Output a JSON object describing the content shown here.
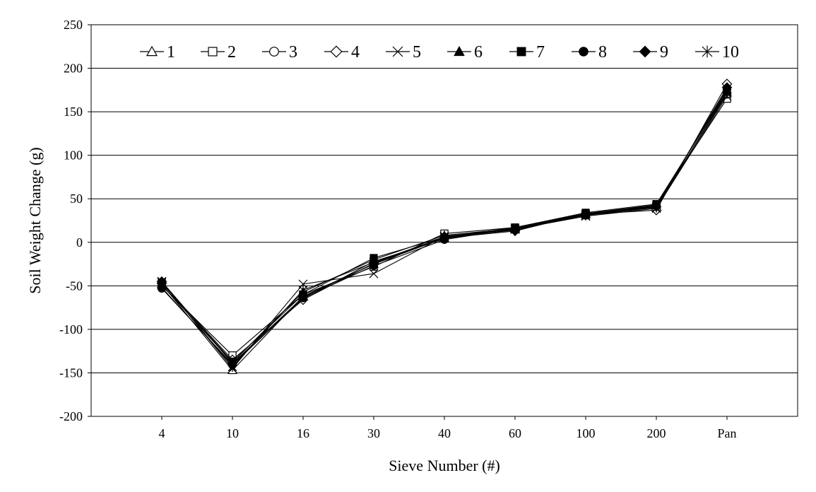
{
  "chart_data": {
    "type": "line",
    "xlabel": "Sieve Number (#)",
    "ylabel": "Soil Weight Change (g)",
    "categories": [
      "4",
      "10",
      "16",
      "30",
      "40",
      "60",
      "100",
      "200",
      "Pan"
    ],
    "ylim": [
      -200,
      250
    ],
    "yticks": [
      -200,
      -150,
      -100,
      -50,
      0,
      50,
      100,
      150,
      200,
      250
    ],
    "grid": "horizontal",
    "legend_position": "top",
    "series": [
      {
        "name": "1",
        "marker": "triangle-open",
        "values": [
          -48,
          -147,
          -62,
          -25,
          5,
          15,
          32,
          40,
          172
        ]
      },
      {
        "name": "2",
        "marker": "square-open",
        "values": [
          -50,
          -130,
          -60,
          -28,
          10,
          17,
          33,
          42,
          165
        ]
      },
      {
        "name": "3",
        "marker": "circle-open",
        "values": [
          -53,
          -140,
          -65,
          -22,
          4,
          16,
          31,
          41,
          170
        ]
      },
      {
        "name": "4",
        "marker": "diamond-open",
        "values": [
          -47,
          -135,
          -66,
          -24,
          6,
          14,
          32,
          37,
          182
        ]
      },
      {
        "name": "5",
        "marker": "x",
        "values": [
          -45,
          -145,
          -48,
          -36,
          7,
          15,
          30,
          39,
          168
        ]
      },
      {
        "name": "6",
        "marker": "triangle",
        "values": [
          -49,
          -138,
          -57,
          -20,
          8,
          16,
          33,
          43,
          175
        ]
      },
      {
        "name": "7",
        "marker": "square",
        "values": [
          -47,
          -137,
          -60,
          -18,
          6,
          17,
          34,
          44,
          173
        ]
      },
      {
        "name": "8",
        "marker": "circle",
        "values": [
          -52,
          -141,
          -64,
          -27,
          3,
          16,
          32,
          42,
          176
        ]
      },
      {
        "name": "9",
        "marker": "diamond",
        "values": [
          -45,
          -139,
          -63,
          -25,
          5,
          13,
          33,
          41,
          178
        ]
      },
      {
        "name": "10",
        "marker": "asterisk",
        "values": [
          -46,
          -143,
          -55,
          -23,
          6,
          15,
          31,
          40,
          171
        ]
      }
    ]
  }
}
